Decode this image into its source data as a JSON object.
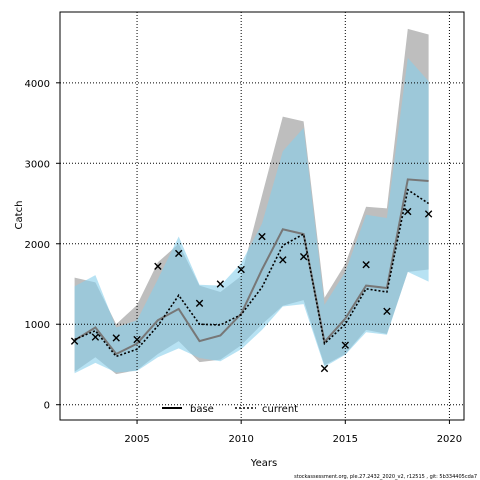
{
  "chart_data": {
    "type": "line",
    "xlabel": "Years",
    "ylabel": "Catch",
    "xlim": [
      2001.3,
      2020.7
    ],
    "ylim": [
      -190,
      4880
    ],
    "x_ticks": [
      2005,
      2010,
      2015,
      2020
    ],
    "y_ticks": [
      0,
      1000,
      2000,
      3000,
      4000
    ],
    "grid": true,
    "legend_position": "bottom-center",
    "footnote": "stockassessment.org, ple.27.2432_2020_v2, r12515 , git: 5b334405cda7",
    "x": [
      2002,
      2003,
      2004,
      2005,
      2006,
      2007,
      2008,
      2009,
      2010,
      2011,
      2012,
      2013,
      2014,
      2015,
      2016,
      2017,
      2018,
      2019
    ],
    "series": [
      {
        "name": "base",
        "style": "solid",
        "line_color": "#000000",
        "band_color": "#bebebe",
        "values": [
          800,
          960,
          630,
          760,
          1050,
          1190,
          790,
          860,
          1130,
          1680,
          2180,
          2120,
          780,
          1070,
          1480,
          1450,
          2800,
          2780
        ],
        "lower": [
          410,
          590,
          380,
          430,
          630,
          790,
          530,
          560,
          740,
          1000,
          1230,
          1300,
          490,
          630,
          930,
          880,
          1650,
          1680
        ],
        "upper": [
          1580,
          1520,
          1000,
          1240,
          1770,
          2000,
          1480,
          1400,
          1600,
          2600,
          3580,
          3520,
          1330,
          1750,
          2460,
          2440,
          4670,
          4600
        ]
      },
      {
        "name": "current",
        "style": "dotted",
        "line_color": "#0000ff",
        "band_color": "#87ceeb",
        "values": [
          810,
          920,
          600,
          690,
          980,
          1360,
          1000,
          990,
          1120,
          1460,
          1980,
          2120,
          760,
          1000,
          1440,
          1400,
          2670,
          2500
        ],
        "lower": [
          390,
          520,
          400,
          420,
          590,
          700,
          580,
          540,
          690,
          930,
          1220,
          1250,
          470,
          620,
          900,
          870,
          1650,
          1530
        ],
        "upper": [
          1470,
          1610,
          960,
          1050,
          1560,
          2090,
          1490,
          1480,
          1760,
          2250,
          3150,
          3440,
          1240,
          1650,
          2360,
          2320,
          4310,
          4020
        ]
      }
    ],
    "observations": {
      "marker": "x",
      "x": [
        2002,
        2003,
        2004,
        2005,
        2006,
        2007,
        2008,
        2009,
        2010,
        2011,
        2012,
        2013,
        2014,
        2015,
        2016,
        2017,
        2018,
        2019
      ],
      "values": [
        790,
        840,
        830,
        810,
        1720,
        1880,
        1260,
        1500,
        1680,
        2090,
        1800,
        1840,
        450,
        740,
        1740,
        1160,
        2400,
        2370
      ]
    }
  }
}
